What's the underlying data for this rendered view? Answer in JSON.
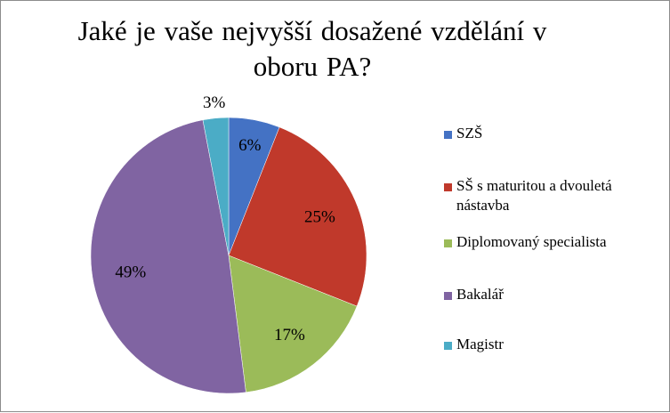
{
  "chart_data": {
    "type": "pie",
    "title": "Jaké je vaše nejvyšší dosažené vzdělání v oboru PA?",
    "categories": [
      "SZŠ",
      "SŠ s maturitou a dvouletá nástavba",
      "Diplomovaný specialista",
      "Bakalář",
      "Magistr"
    ],
    "values": [
      6,
      25,
      17,
      49,
      3
    ],
    "labels": [
      "6%",
      "25%",
      "17%",
      "49%",
      "3%"
    ],
    "colors": [
      "#4472c4",
      "#c0392b",
      "#9bbb59",
      "#8064a2",
      "#4bacc6"
    ],
    "legend_position": "right",
    "start_angle_deg": 0,
    "direction": "clockwise"
  }
}
